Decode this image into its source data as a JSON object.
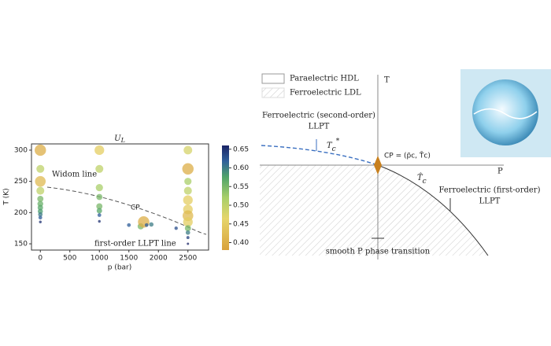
{
  "chart_data": {
    "type": "scatter",
    "title": "U",
    "title_subscript": "L",
    "x_label": "p (bar)",
    "y_label": "T (K)",
    "x": [
      0,
      0,
      0,
      0,
      0,
      0,
      0,
      0,
      0,
      0,
      0,
      1000,
      1000,
      1000,
      1000,
      1000,
      1000,
      1000,
      1000,
      1500,
      1700,
      1750,
      1800,
      1880,
      2300,
      2500,
      2500,
      2500,
      2500,
      2500,
      2500,
      2500,
      2500,
      2500,
      2500,
      2500,
      2500
    ],
    "y": [
      300,
      270,
      250,
      235,
      222,
      214,
      208,
      202,
      197,
      192,
      185,
      300,
      270,
      240,
      225,
      210,
      203,
      196,
      186,
      180,
      178,
      185,
      180,
      181,
      175,
      300,
      270,
      250,
      235,
      220,
      205,
      195,
      185,
      175,
      168,
      160,
      150
    ],
    "values": [
      0.4,
      0.5,
      0.42,
      0.5,
      0.55,
      0.56,
      0.57,
      0.58,
      0.6,
      0.62,
      0.65,
      0.45,
      0.5,
      0.52,
      0.55,
      0.55,
      0.57,
      0.62,
      0.65,
      0.62,
      0.55,
      0.4,
      0.62,
      0.6,
      0.63,
      0.48,
      0.4,
      0.52,
      0.5,
      0.45,
      0.45,
      0.42,
      0.45,
      0.55,
      0.6,
      0.64,
      0.66
    ],
    "xlim": [
      -150,
      2850
    ],
    "ylim": [
      140,
      310
    ],
    "xticks": [
      0,
      500,
      1000,
      1500,
      2000,
      2500
    ],
    "yticks": [
      150,
      200,
      250,
      300
    ],
    "clim": [
      0.38,
      0.66
    ],
    "cticks": [
      {
        "value": 0.4,
        "label": "0.40"
      },
      0.45,
      {
        "value": 0.5,
        "label": "0.50"
      },
      0.55,
      {
        "value": 0.6,
        "label": "0.60"
      },
      0.65
    ],
    "annotations": [
      "Widom line",
      "CP",
      "first-order LLPT line"
    ]
  },
  "diagram": {
    "legend": [
      "Paraelectric HDL",
      "Ferroelectric LDL"
    ],
    "axis_t": "T",
    "axis_p": "P",
    "second_order": [
      "Ferroelectric (second-order)",
      "LLPT"
    ],
    "tc_star": "T",
    "tc_star_sub": "c",
    "tc_star_sup": "*",
    "cp": "CP = (p̄c, T̄c)",
    "tc_hat": "T̂",
    "tc_hat_sub": "c",
    "first_order": [
      "Ferroelectric (first-order)",
      "LLPT"
    ],
    "smooth": "smooth P phase transition"
  }
}
